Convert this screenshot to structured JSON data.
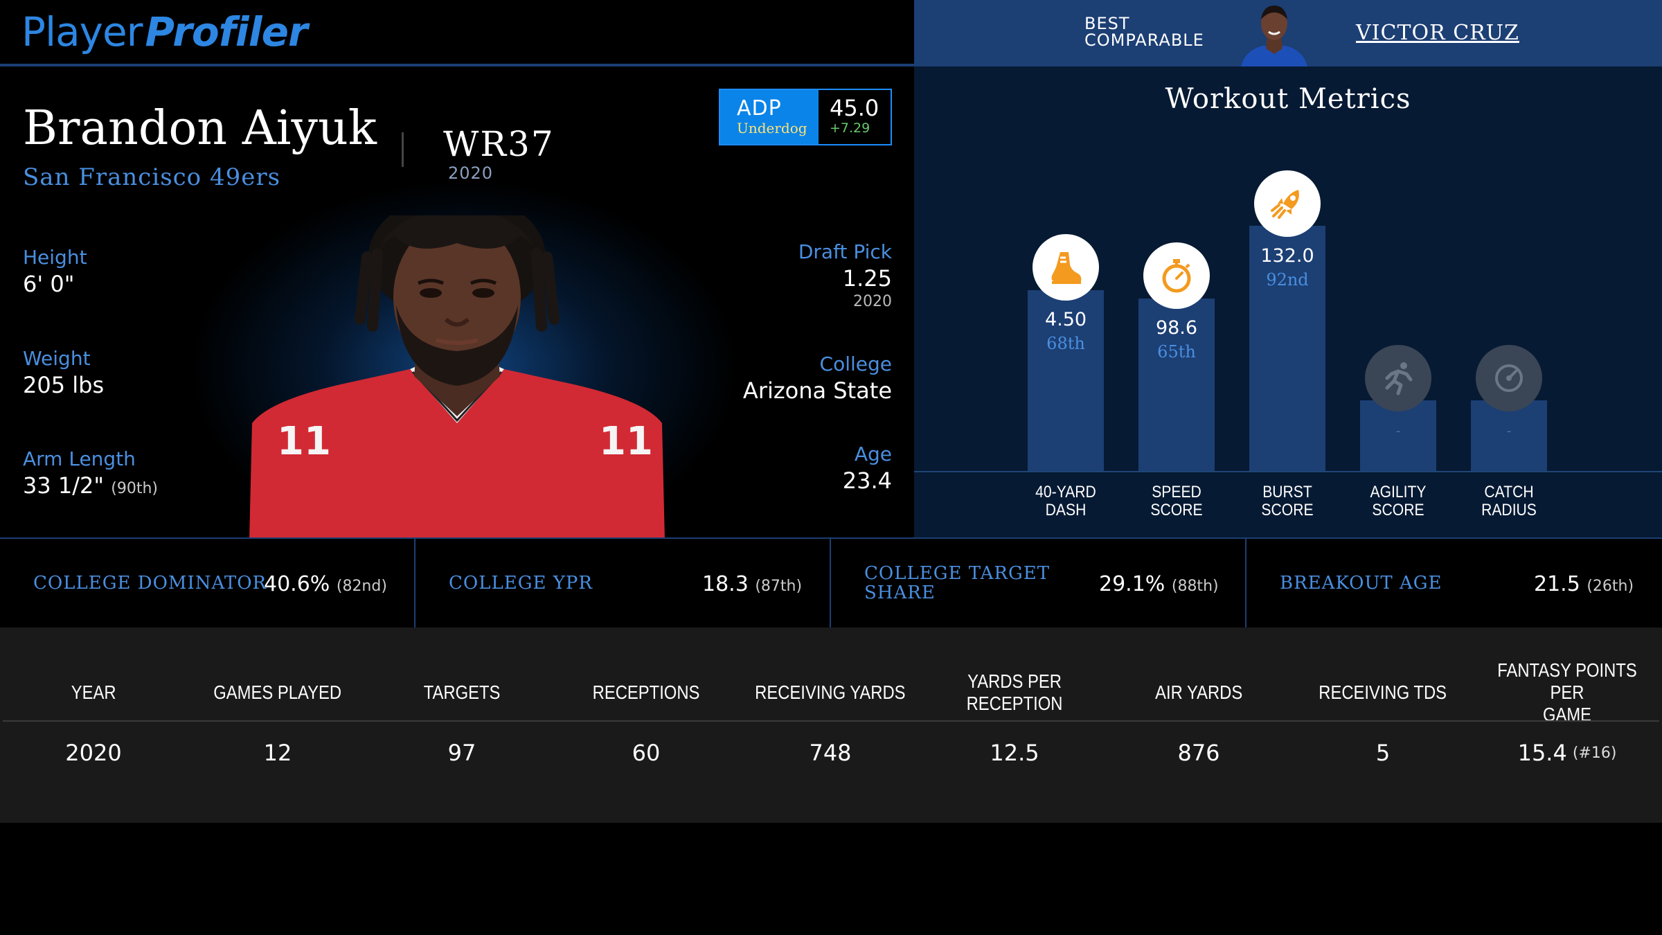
{
  "brand": {
    "part1": "Player",
    "part2": "Profiler"
  },
  "comparable": {
    "label": "BEST\nCOMPARABLE",
    "name": "VICTOR CRUZ"
  },
  "player": {
    "name": "Brandon Aiyuk",
    "position_rank": "WR37",
    "rank_year": "2020",
    "team": "San Francisco 49ers",
    "jersey_number": "11"
  },
  "adp": {
    "label": "ADP",
    "source": "Underdog",
    "value": "45.0",
    "change": "+7.29"
  },
  "bio_left": [
    {
      "label": "Height",
      "value": "6' 0\"",
      "pct": ""
    },
    {
      "label": "Weight",
      "value": "205 lbs",
      "pct": ""
    },
    {
      "label": "Arm Length",
      "value": "33 1/2\"",
      "pct": "(90th)"
    }
  ],
  "bio_right": [
    {
      "label": "Draft Pick",
      "value": "1.25",
      "sub": "2020"
    },
    {
      "label": "College",
      "value": "Arizona State",
      "sub": ""
    },
    {
      "label": "Age",
      "value": "23.4",
      "sub": ""
    }
  ],
  "workout": {
    "title": "Workout Metrics",
    "metrics": [
      {
        "label": "40-YARD\nDASH",
        "value": "4.50",
        "percentile": "68th",
        "percentile_num": 68,
        "icon": "shoe-icon",
        "available": true
      },
      {
        "label": "SPEED\nSCORE",
        "value": "98.6",
        "percentile": "65th",
        "percentile_num": 65,
        "icon": "stopwatch-icon",
        "available": true
      },
      {
        "label": "BURST\nSCORE",
        "value": "132.0",
        "percentile": "92nd",
        "percentile_num": 92,
        "icon": "rocket-icon",
        "available": true
      },
      {
        "label": "AGILITY\nSCORE",
        "value": "-",
        "percentile": "",
        "percentile_num": null,
        "icon": "runner-icon",
        "available": false
      },
      {
        "label": "CATCH\nRADIUS",
        "value": "-",
        "percentile": "",
        "percentile_num": null,
        "icon": "gauge-icon",
        "available": false
      }
    ]
  },
  "college_metrics": [
    {
      "label": "COLLEGE DOMINATOR",
      "value": "40.6%",
      "pct": "(82nd)"
    },
    {
      "label": "COLLEGE YPR",
      "value": "18.3",
      "pct": "(87th)"
    },
    {
      "label": "COLLEGE TARGET\nSHARE",
      "value": "29.1%",
      "pct": "(88th)"
    },
    {
      "label": "BREAKOUT AGE",
      "value": "21.5",
      "pct": "(26th)"
    }
  ],
  "season_table": {
    "headers": [
      "YEAR",
      "GAMES PLAYED",
      "TARGETS",
      "RECEPTIONS",
      "RECEIVING YARDS",
      "YARDS PER RECEPTION",
      "AIR YARDS",
      "RECEIVING TDS",
      "FANTASY POINTS PER\nGAME"
    ],
    "rows": [
      {
        "cells": [
          "2020",
          "12",
          "97",
          "60",
          "748",
          "12.5",
          "876",
          "5",
          "15.4"
        ],
        "fantasy_rank": "(#16)"
      }
    ]
  },
  "colors": {
    "accent": "#4a8fe0",
    "navy": "#1c3f74",
    "panel": "#071a33",
    "icon_orange": "#f39a1f"
  }
}
